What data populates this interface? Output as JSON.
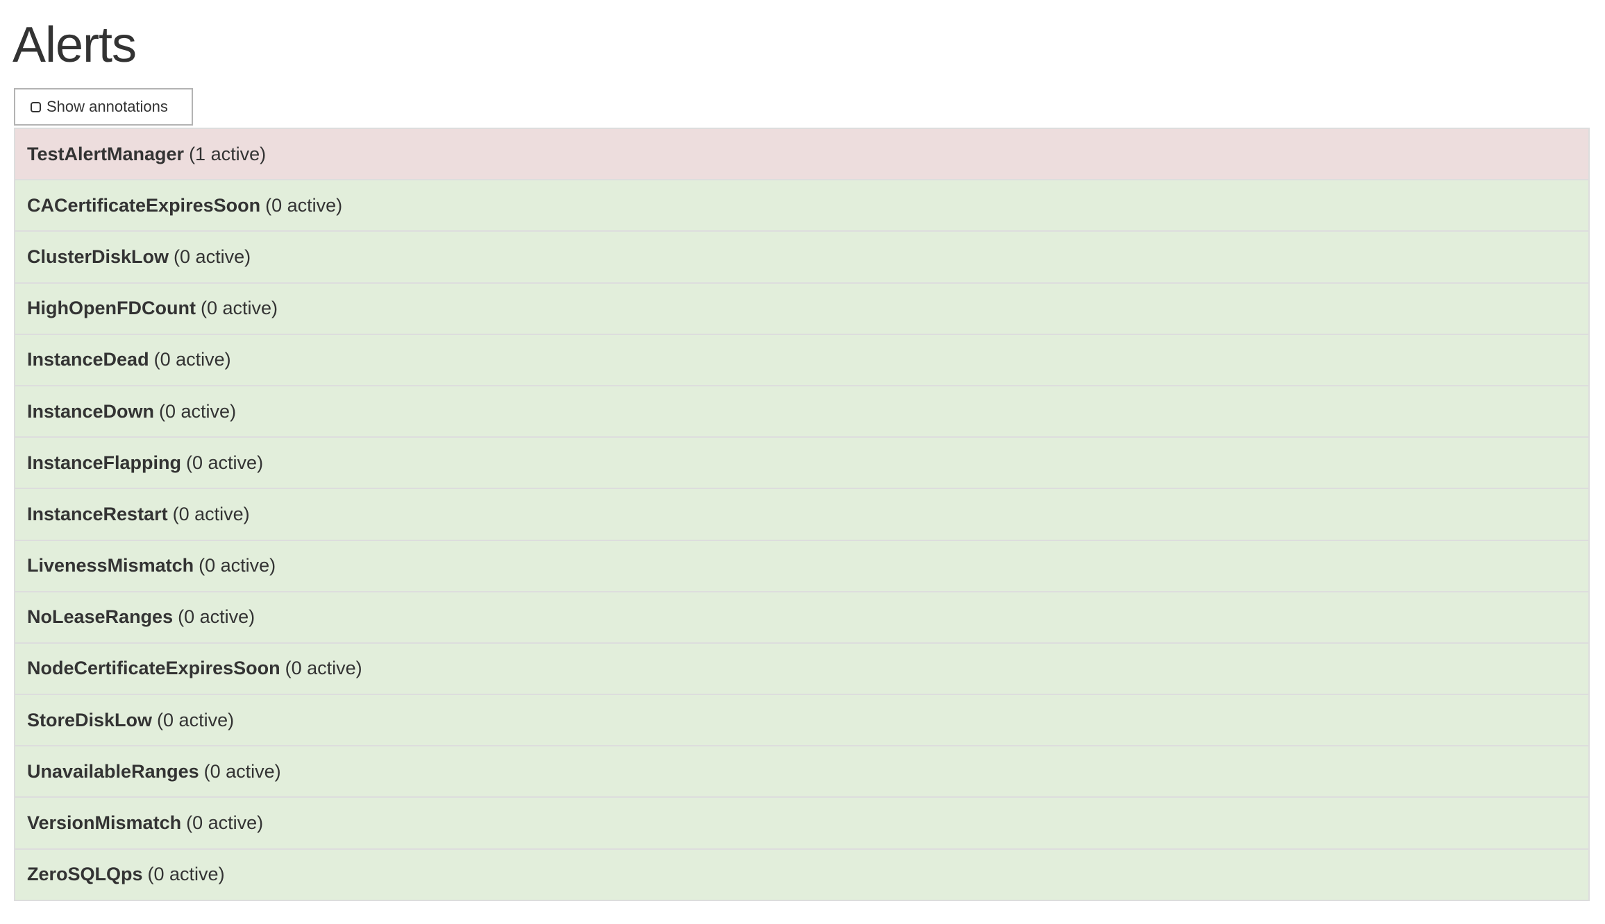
{
  "page": {
    "title": "Alerts"
  },
  "toolbar": {
    "show_annotations_label": "Show annotations",
    "show_annotations_checked": false
  },
  "colors": {
    "firing": "#eddddd",
    "inactive": "#e2eedb",
    "border": "#dddddd"
  },
  "alerts": [
    {
      "name": "TestAlertManager",
      "count": "(1 active)",
      "state": "firing"
    },
    {
      "name": "CACertificateExpiresSoon",
      "count": "(0 active)",
      "state": "ok"
    },
    {
      "name": "ClusterDiskLow",
      "count": "(0 active)",
      "state": "ok"
    },
    {
      "name": "HighOpenFDCount",
      "count": "(0 active)",
      "state": "ok"
    },
    {
      "name": "InstanceDead",
      "count": "(0 active)",
      "state": "ok"
    },
    {
      "name": "InstanceDown",
      "count": "(0 active)",
      "state": "ok"
    },
    {
      "name": "InstanceFlapping",
      "count": "(0 active)",
      "state": "ok"
    },
    {
      "name": "InstanceRestart",
      "count": "(0 active)",
      "state": "ok"
    },
    {
      "name": "LivenessMismatch",
      "count": "(0 active)",
      "state": "ok"
    },
    {
      "name": "NoLeaseRanges",
      "count": "(0 active)",
      "state": "ok"
    },
    {
      "name": "NodeCertificateExpiresSoon",
      "count": "(0 active)",
      "state": "ok"
    },
    {
      "name": "StoreDiskLow",
      "count": "(0 active)",
      "state": "ok"
    },
    {
      "name": "UnavailableRanges",
      "count": "(0 active)",
      "state": "ok"
    },
    {
      "name": "VersionMismatch",
      "count": "(0 active)",
      "state": "ok"
    },
    {
      "name": "ZeroSQLQps",
      "count": "(0 active)",
      "state": "ok"
    }
  ]
}
